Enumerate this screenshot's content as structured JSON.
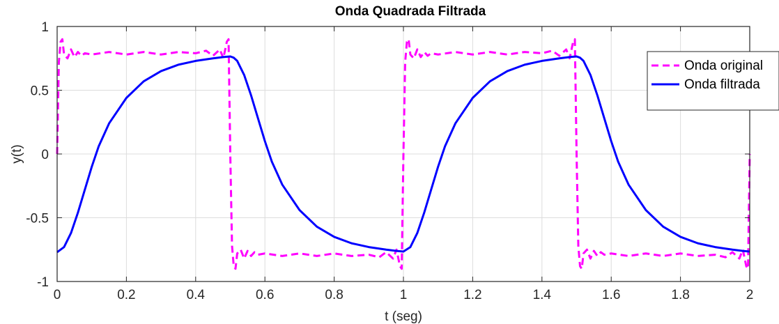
{
  "chart_data": {
    "type": "line",
    "title": "Onda Quadrada Filtrada",
    "xlabel": "t (seg)",
    "ylabel": "y(t)",
    "xlim": [
      0,
      2
    ],
    "ylim": [
      -1,
      1
    ],
    "xticks": [
      "0",
      "0.2",
      "0.4",
      "0.6",
      "0.8",
      "1",
      "1.2",
      "1.4",
      "1.6",
      "1.8",
      "2"
    ],
    "xtick_values": [
      0,
      0.2,
      0.4,
      0.6,
      0.8,
      1.0,
      1.2,
      1.4,
      1.6,
      1.8,
      2.0
    ],
    "yticks": [
      "-1",
      "-0.5",
      "0",
      "0.5",
      "1"
    ],
    "ytick_values": [
      -1,
      -0.5,
      0,
      0.5,
      1
    ],
    "grid": true,
    "legend_position": "top-right",
    "series": [
      {
        "name": "Onda original",
        "color": "#ff00ff",
        "style": "dashed",
        "x": [
          0,
          0.005,
          0.01,
          0.015,
          0.02,
          0.03,
          0.04,
          0.05,
          0.06,
          0.07,
          0.08,
          0.1,
          0.15,
          0.2,
          0.25,
          0.3,
          0.35,
          0.4,
          0.43,
          0.45,
          0.47,
          0.48,
          0.49,
          0.495,
          0.5,
          0.505,
          0.51,
          0.515,
          0.52,
          0.53,
          0.54,
          0.55,
          0.56,
          0.57,
          0.58,
          0.6,
          0.65,
          0.7,
          0.75,
          0.8,
          0.85,
          0.9,
          0.93,
          0.95,
          0.97,
          0.98,
          0.99,
          0.995,
          1.0,
          1.005,
          1.01,
          1.015,
          1.02,
          1.03,
          1.04,
          1.05,
          1.06,
          1.07,
          1.08,
          1.1,
          1.15,
          1.2,
          1.25,
          1.3,
          1.35,
          1.4,
          1.43,
          1.45,
          1.47,
          1.48,
          1.49,
          1.495,
          1.5,
          1.505,
          1.51,
          1.515,
          1.52,
          1.53,
          1.54,
          1.55,
          1.56,
          1.57,
          1.58,
          1.6,
          1.65,
          1.7,
          1.75,
          1.8,
          1.85,
          1.9,
          1.93,
          1.95,
          1.97,
          1.98,
          1.99,
          1.995,
          2.0
        ],
        "values": [
          0.0,
          0.72,
          0.88,
          0.9,
          0.78,
          0.75,
          0.82,
          0.76,
          0.8,
          0.77,
          0.79,
          0.78,
          0.8,
          0.78,
          0.8,
          0.78,
          0.8,
          0.79,
          0.81,
          0.77,
          0.82,
          0.75,
          0.88,
          0.9,
          0.0,
          -0.72,
          -0.88,
          -0.9,
          -0.78,
          -0.75,
          -0.82,
          -0.76,
          -0.8,
          -0.77,
          -0.79,
          -0.78,
          -0.8,
          -0.78,
          -0.8,
          -0.78,
          -0.8,
          -0.79,
          -0.81,
          -0.77,
          -0.82,
          -0.75,
          -0.88,
          -0.9,
          0.0,
          0.72,
          0.88,
          0.9,
          0.78,
          0.75,
          0.82,
          0.76,
          0.8,
          0.77,
          0.79,
          0.78,
          0.8,
          0.78,
          0.8,
          0.78,
          0.8,
          0.79,
          0.81,
          0.77,
          0.82,
          0.75,
          0.88,
          0.9,
          0.0,
          -0.72,
          -0.88,
          -0.9,
          -0.78,
          -0.75,
          -0.82,
          -0.76,
          -0.8,
          -0.77,
          -0.79,
          -0.78,
          -0.8,
          -0.78,
          -0.8,
          -0.78,
          -0.8,
          -0.79,
          -0.81,
          -0.77,
          -0.82,
          -0.75,
          -0.88,
          -0.9,
          0.0
        ]
      },
      {
        "name": "Onda filtrada",
        "color": "#0000ff",
        "style": "solid",
        "x": [
          0,
          0.02,
          0.04,
          0.06,
          0.08,
          0.1,
          0.12,
          0.15,
          0.2,
          0.25,
          0.3,
          0.35,
          0.4,
          0.45,
          0.48,
          0.5,
          0.51,
          0.52,
          0.54,
          0.56,
          0.58,
          0.6,
          0.62,
          0.65,
          0.7,
          0.75,
          0.8,
          0.85,
          0.9,
          0.95,
          0.98,
          1.0,
          1.02,
          1.04,
          1.06,
          1.08,
          1.1,
          1.12,
          1.15,
          1.2,
          1.25,
          1.3,
          1.35,
          1.4,
          1.45,
          1.48,
          1.5,
          1.51,
          1.52,
          1.54,
          1.56,
          1.58,
          1.6,
          1.62,
          1.65,
          1.7,
          1.75,
          1.8,
          1.85,
          1.9,
          1.95,
          1.98,
          2.0
        ],
        "values": [
          -0.77,
          -0.73,
          -0.62,
          -0.46,
          -0.28,
          -0.1,
          0.06,
          0.24,
          0.44,
          0.57,
          0.65,
          0.7,
          0.73,
          0.75,
          0.76,
          0.765,
          0.755,
          0.73,
          0.62,
          0.46,
          0.28,
          0.1,
          -0.06,
          -0.24,
          -0.44,
          -0.57,
          -0.65,
          -0.7,
          -0.73,
          -0.75,
          -0.76,
          -0.765,
          -0.73,
          -0.62,
          -0.46,
          -0.28,
          -0.1,
          0.06,
          0.24,
          0.44,
          0.57,
          0.65,
          0.7,
          0.73,
          0.75,
          0.76,
          0.765,
          0.755,
          0.73,
          0.62,
          0.46,
          0.28,
          0.1,
          -0.06,
          -0.24,
          -0.44,
          -0.57,
          -0.65,
          -0.7,
          -0.73,
          -0.75,
          -0.76,
          -0.765
        ]
      }
    ]
  }
}
